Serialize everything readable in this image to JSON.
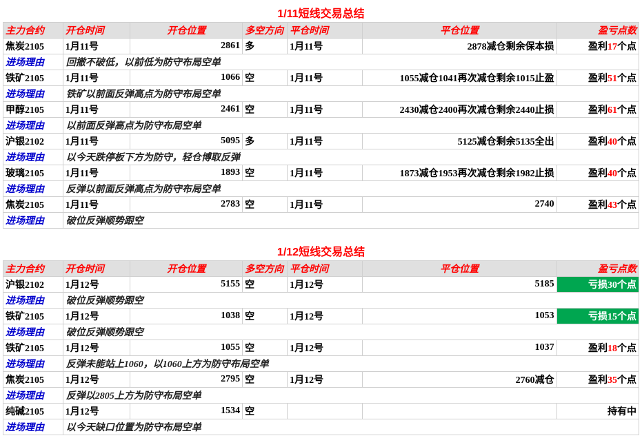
{
  "titles": {
    "t1": "1/11短线交易总结",
    "t2": "1/12短线交易总结"
  },
  "headers": {
    "contract": "主力合约",
    "openTime": "开仓时间",
    "openPos": "开仓位置",
    "direction": "多空方向",
    "closeTime": "平仓时间",
    "closePos": "平仓位置",
    "pnl": "盈亏点数"
  },
  "reasonLabel": "进场理由",
  "pnlLabels": {
    "profit": "盈利",
    "loss": "亏损",
    "suffix": "个点",
    "holding": "持有中"
  },
  "section1": [
    {
      "contract": "焦炭2105",
      "openTime": "1月11号",
      "openPos": "2861",
      "dir": "多",
      "closeTime": "1月11号",
      "closePos": "2878减仓剩余保本损",
      "pnlType": "profit",
      "pnlNum": "17",
      "reason": "回撤不破低，以前低为防守布局空单"
    },
    {
      "contract": "铁矿2105",
      "openTime": "1月11号",
      "openPos": "1066",
      "dir": "空",
      "closeTime": "1月11号",
      "closePos": "1055减仓1041再次减仓剩余1015止盈",
      "pnlType": "profit",
      "pnlNum": "51",
      "reason": "铁矿以前面反弹高点为防守布局空单"
    },
    {
      "contract": "甲醇2105",
      "openTime": "1月11号",
      "openPos": "2461",
      "dir": "空",
      "closeTime": "1月11号",
      "closePos": "2430减仓2400再次减仓剩余2440止损",
      "pnlType": "profit",
      "pnlNum": "61",
      "reason": "以前面反弹高点为防守布局空单"
    },
    {
      "contract": "沪银2102",
      "openTime": "1月11号",
      "openPos": "5095",
      "dir": "多",
      "closeTime": "1月11号",
      "closePos": "5125减仓剩余5135全出",
      "pnlType": "profit",
      "pnlNum": "40",
      "reason": "以今天跌停板下方为防守，轻仓博取反弹"
    },
    {
      "contract": "玻璃2105",
      "openTime": "1月11号",
      "openPos": "1893",
      "dir": "空",
      "closeTime": "1月11号",
      "closePos": "1873减仓1953再次减仓剩余1982止损",
      "pnlType": "profit",
      "pnlNum": "40",
      "reason": "反弹以前面反弹高点为防守布局空单"
    },
    {
      "contract": "焦炭2105",
      "openTime": "1月11号",
      "openPos": "2783",
      "dir": "空",
      "closeTime": "1月11号",
      "closePos": "2740",
      "pnlType": "profit",
      "pnlNum": "43",
      "reason": "破位反弹顺势跟空"
    }
  ],
  "section2": [
    {
      "contract": "沪银2102",
      "openTime": "1月12号",
      "openPos": "5155",
      "dir": "空",
      "closeTime": "1月12号",
      "closePos": "5185",
      "pnlType": "loss",
      "pnlNum": "30",
      "reason": "破位反弹顺势跟空"
    },
    {
      "contract": "铁矿2105",
      "openTime": "1月12号",
      "openPos": "1038",
      "dir": "空",
      "closeTime": "1月12号",
      "closePos": "1053",
      "pnlType": "loss",
      "pnlNum": "15",
      "reason": "破位反弹顺势跟空"
    },
    {
      "contract": "铁矿2105",
      "openTime": "1月12号",
      "openPos": "1055",
      "dir": "空",
      "closeTime": "1月12号",
      "closePos": "1037",
      "pnlType": "profit",
      "pnlNum": "18",
      "reason": "反弹未能站上1060，以1060上方为防守布局空单"
    },
    {
      "contract": "焦炭2105",
      "openTime": "1月12号",
      "openPos": "2795",
      "dir": "空",
      "closeTime": "1月12号",
      "closePos": "2760减仓",
      "pnlType": "profit",
      "pnlNum": "35",
      "reason": "反弹以2805上方为防守布局空单"
    },
    {
      "contract": "纯碱2105",
      "openTime": "1月12号",
      "openPos": "1534",
      "dir": "空",
      "closeTime": "",
      "closePos": "",
      "pnlType": "holding",
      "pnlNum": "",
      "reason": "以今天缺口位置为防守布局空单"
    }
  ]
}
